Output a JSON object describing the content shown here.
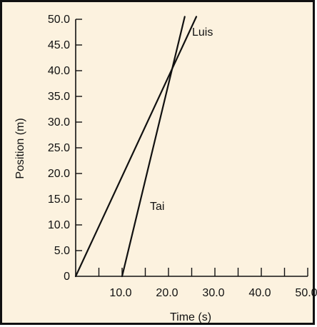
{
  "colors": {
    "background": "#fcf2df",
    "frame": "#111111",
    "line": "#111111"
  },
  "chart_data": {
    "type": "line",
    "title": "",
    "xlabel": "Time (s)",
    "ylabel": "Position (m)",
    "xlim": [
      0,
      50
    ],
    "ylim": [
      0,
      50
    ],
    "x_ticks": [
      "10.0",
      "20.0",
      "30.0",
      "40.0",
      "50.0"
    ],
    "x_tick_values": [
      10,
      20,
      30,
      40,
      50
    ],
    "y_ticks": [
      "0",
      "5.0",
      "10.0",
      "15.0",
      "20.0",
      "25.0",
      "30.0",
      "35.0",
      "40.0",
      "45.0",
      "50.0"
    ],
    "y_tick_values": [
      0,
      5,
      10,
      15,
      20,
      25,
      30,
      35,
      40,
      45,
      50
    ],
    "grid": false,
    "legend": "none",
    "series": [
      {
        "name": "Luis",
        "x": [
          0,
          26
        ],
        "y": [
          0,
          50.5
        ]
      },
      {
        "name": "Tai",
        "x": [
          10,
          23.5
        ],
        "y": [
          0,
          50.5
        ]
      }
    ]
  }
}
